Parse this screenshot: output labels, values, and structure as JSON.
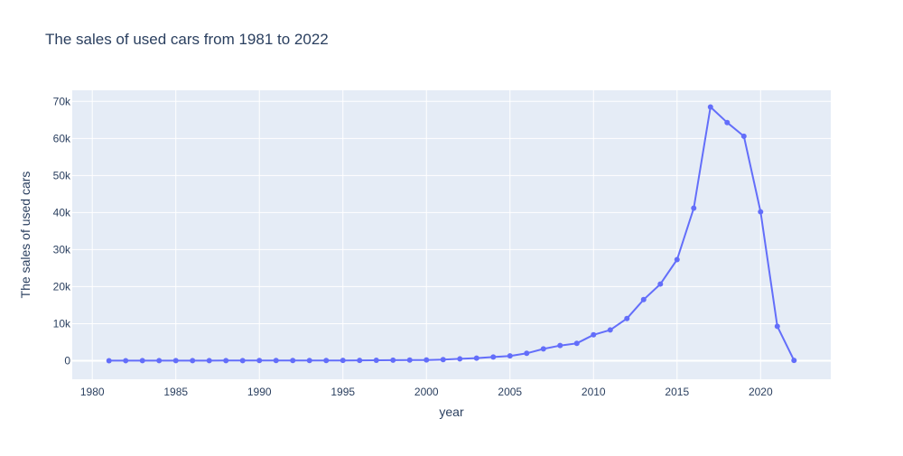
{
  "chart_data": {
    "type": "line",
    "title": "The sales of used cars from 1981 to 2022",
    "xlabel": "year",
    "ylabel": "The sales of used cars",
    "xlim": [
      1978.8,
      2024.2
    ],
    "ylim": [
      -5000,
      73000
    ],
    "x_ticks": [
      1980,
      1985,
      1990,
      1995,
      2000,
      2005,
      2010,
      2015,
      2020
    ],
    "x_tick_labels": [
      "1980",
      "1985",
      "1990",
      "1995",
      "2000",
      "2005",
      "2010",
      "2015",
      "2020"
    ],
    "y_ticks": [
      0,
      10000,
      20000,
      30000,
      40000,
      50000,
      60000,
      70000
    ],
    "y_tick_labels": [
      "0",
      "10k",
      "20k",
      "30k",
      "40k",
      "50k",
      "60k",
      "70k"
    ],
    "grid": true,
    "legend": "none",
    "colors": {
      "line": "#636efa",
      "plot_bg": "#e5ecf6",
      "grid": "#ffffff",
      "text": "#2a3f5f"
    },
    "series": [
      {
        "x": [
          1981,
          1982,
          1983,
          1984,
          1985,
          1986,
          1987,
          1988,
          1989,
          1990,
          1991,
          1992,
          1993,
          1994,
          1995,
          1996,
          1997,
          1998,
          1999,
          2000,
          2001,
          2002,
          2003,
          2004,
          2005,
          2006,
          2007,
          2008,
          2009,
          2010,
          2011,
          2012,
          2013,
          2014,
          2015,
          2016,
          2017,
          2018,
          2019,
          2020,
          2021,
          2022
        ],
        "y": [
          10,
          12,
          15,
          18,
          20,
          25,
          30,
          35,
          40,
          45,
          50,
          55,
          60,
          70,
          80,
          100,
          120,
          150,
          180,
          200,
          300,
          500,
          700,
          1000,
          1300,
          2000,
          3200,
          4100,
          4700,
          7000,
          8300,
          11400,
          16500,
          20700,
          27300,
          41200,
          68500,
          64300,
          60600,
          40200,
          9300,
          100
        ]
      }
    ]
  }
}
